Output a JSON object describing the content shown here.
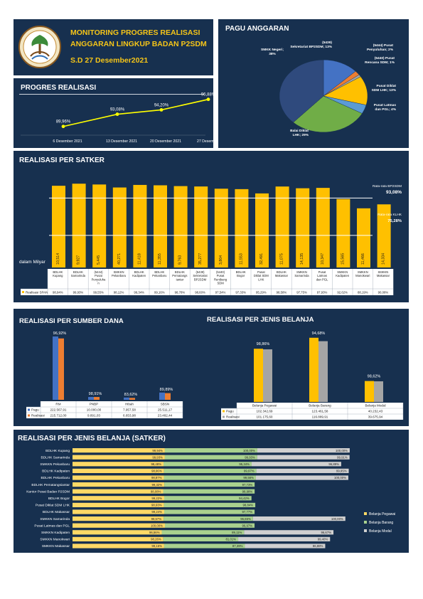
{
  "header": {
    "title_line1": "MONITORING PROGRES REALISASI",
    "title_line2": "ANGGARAN LINGKUP BADAN P2SDM",
    "date": "S.D 27 Desember2021",
    "colors": {
      "title": "#f5c518",
      "panel": "#17304f",
      "divider": "#d0d7df"
    }
  },
  "progress": {
    "title": "PROGRES REALISASI",
    "chart_data": {
      "type": "line",
      "categories": [
        "6 Desember 2021",
        "13 Desember 2021",
        "20 Desember 2021",
        "27 Desember 2021"
      ],
      "values": [
        89.96,
        93.08,
        94.2,
        96.88
      ],
      "labels": [
        "89,96%",
        "93,08%",
        "94,20%",
        "96,88%"
      ],
      "color": "#ffff00"
    }
  },
  "pagu": {
    "title": "PAGU ANGGARAN",
    "chart_data": {
      "type": "pie",
      "slices": [
        {
          "label": "(5439) Sekretariat BP2SDM",
          "value": 13,
          "text": "(5439) Sekretariat BP2SDM; 13%",
          "color": "#4472c4"
        },
        {
          "label": "(5444) Pusat Penyuluhan",
          "value": 2,
          "text": "(5444) Pusat Penyuluhan; 2%",
          "color": "#ed7d31"
        },
        {
          "label": "(5440) Pusat Rencana SDM",
          "value": 1,
          "text": "(5440) Pusat Rencana SDM; 1%",
          "color": "#a5a5a5"
        },
        {
          "label": "Pusat Diklat SDM LHK",
          "value": 13,
          "text": "Pusat Diklat SDM LHK; 13%",
          "color": "#ffc000"
        },
        {
          "label": "Pusat Latmas dan PGL",
          "value": 4,
          "text": "Pusat Latmas dan PGL; 4%",
          "color": "#5b9bd5"
        },
        {
          "label": "Balai Diklat LHK",
          "value": 29,
          "text": "Balai Diklat LHK; 29%",
          "color": "#70ad47"
        },
        {
          "label": "SMKK Negeri",
          "value": 38,
          "text": "SMKK Negeri; 38%",
          "color": "#2f4a7d"
        }
      ]
    }
  },
  "satker": {
    "title": "REALISASI PER SATKER",
    "unit_label": "dalam Milyar",
    "avg1_label": "Rata-rata BP2SDM",
    "avg1_value": "93,08%",
    "avg2_label": "Rata-rata KLHK",
    "avg2_value": "75,28%",
    "legend_label": "Realisasi SPAN",
    "chart_data": {
      "type": "bar",
      "categories": [
        "BDLHK Kupang",
        "BDLHK Samarinda",
        "(5444) Pusat Penyuluhan",
        "SMKKN Pekanbaru",
        "BDLHK Kadipaten",
        "BDLHK Pekanbaru",
        "BDLHK Pematangsiantar",
        "(5439) Sekretariat BP2SDM",
        "(5440) Pusat Rencana SDM",
        "BDLHK Bogor",
        "Pusat Diklat SDM LHK",
        "BDLHK Makassar",
        "SMKKN Samarinda",
        "Pusat Latmas dan PGL",
        "SMKKN Kadipaten",
        "SMKKN Manokwari",
        "SMKKN Makassar"
      ],
      "category_labels": [
        [
          "BDLHK",
          "Kupang"
        ],
        [
          "BDLHK",
          "Samarinda"
        ],
        [
          "(5444)",
          "Pusat",
          "Penyuluha",
          "n"
        ],
        [
          "SMKKN",
          "Pekanbaru"
        ],
        [
          "BDLHK",
          "Kadipaten"
        ],
        [
          "BDLHK",
          "Pekanbaru"
        ],
        [
          "BDLHK",
          "Pematangs",
          "iantar"
        ],
        [
          "(5439)",
          "Sekretariat",
          "BP2SDM"
        ],
        [
          "(5440)",
          "Pusat",
          "Rentbang",
          "SDM"
        ],
        [
          "BDLHK",
          "Bogor"
        ],
        [
          "Pusat",
          "Diklat SDM",
          "LHK"
        ],
        [
          "BDLHK",
          "Makassar"
        ],
        [
          "SMKKN",
          "Samarinda"
        ],
        [
          "Pusat",
          "Latmas",
          "dan PGL"
        ],
        [
          "SMKKN",
          "Kadipaten"
        ],
        [
          "SMKKN",
          "Manokwari"
        ],
        [
          "SMKKN",
          "Makassar"
        ]
      ],
      "values": [
        "10,514",
        "9,927",
        "5,445",
        "40,271",
        "11,418",
        "11,355",
        "9,763",
        "35,277",
        "3,804",
        "11,553",
        "32,491",
        "11,075",
        "14,135",
        "10,347",
        "15,565",
        "11,466",
        "14,334"
      ],
      "percent": [
        98.94,
        99.93,
        99.55,
        98.12,
        99.34,
        99.16,
        98.78,
        98.6,
        97.54,
        97.33,
        95.29,
        98.58,
        97.75,
        97.93,
        92.62,
        88.19,
        90.08
      ],
      "percent_labels": [
        "98,94%",
        "99,93%",
        "99,55%",
        "98,12%",
        "99,34%",
        "99,16%",
        "98,78%",
        "98,60%",
        "97,54%",
        "97,33%",
        "95,29%",
        "98,58%",
        "97,75%",
        "97,93%",
        "92,62%",
        "88,19%",
        "90,08%"
      ],
      "ylim": [
        60,
        100
      ],
      "avg_lines": [
        93.08,
        75.28
      ],
      "color": "#ffc000"
    }
  },
  "sumber": {
    "title": "REALISASI PER SUMBER DANA",
    "chart_data": {
      "type": "bar",
      "categories": [
        "RM",
        "PNBP",
        "Hibah",
        "SBSN"
      ],
      "series": [
        {
          "name": "Pagu",
          "values": [
            222567.91,
            10000,
            7957.58,
            25511.17
          ],
          "labels": [
            "222.567,91",
            "10.000,00",
            "7.957,58",
            "25.511,17"
          ],
          "color": "#4472c4"
        },
        {
          "name": "Realisasi",
          "values": [
            215712,
            9891.03,
            6653.98,
            23482.44
          ],
          "labels": [
            "215.712,00",
            "9.891,03",
            "6.653,98",
            "23.482,44"
          ],
          "color": "#ed7d31"
        }
      ],
      "percent_labels": [
        "96,92%",
        "98,91%",
        "83,62%",
        "89,89%"
      ],
      "ylim": [
        0,
        230000
      ]
    }
  },
  "jenis": {
    "title": "REALISASI PER JENIS BELANJA",
    "chart_data": {
      "type": "bar",
      "categories": [
        "Belanja Pegawai",
        "Belanja Barang",
        "Belanja Modal"
      ],
      "series": [
        {
          "name": "Pagu",
          "values": [
            102342.69,
            123461.58,
            40232.43
          ],
          "labels": [
            "102.342,69",
            "123.461,58",
            "40.232,43"
          ],
          "color": "#ffc000"
        },
        {
          "name": "Realisasi",
          "values": [
            101175.6,
            116889.91,
            39675.94
          ],
          "labels": [
            "101.175,60",
            "116.889,91",
            "39.675,94"
          ],
          "color": "#a5a5a5"
        }
      ],
      "percent_labels": [
        "98,86%",
        "94,68%",
        "98,62%"
      ],
      "ylim": [
        0,
        130000
      ]
    }
  },
  "jenis_satker": {
    "title": "REALISASI PER JENIS BELANJA (SATKER)",
    "chart_data": {
      "type": "bar",
      "orientation": "horizontal",
      "categories": [
        "BDLHK Kupang",
        "BDLHK Samarinda",
        "SMKKN Pekanbaru",
        "BDLHK Kadipaten",
        "BDLHK Pekanbaru",
        "BDLHK Pematangsiantar",
        "Kantor Pusat Badan P2SDM",
        "BDLHK Bogor",
        "Pusat Diklat SDM LHK",
        "BDLHK Makassar",
        "SMKKN Samarinda",
        "Pusat Latmas dan PGL",
        "SMKKN Kadipaten",
        "SMKKN Manokwari",
        "SMKKN Makassar"
      ],
      "series": [
        {
          "name": "Belanja Pegawai",
          "color": "#ffd966",
          "values": [
            99.94,
            99.93,
            98.48,
            98.96,
            98.87,
            99.32,
            98.08,
            99.22,
            98.93,
            99.24,
            98.57,
            100.0,
            96.56,
            98.26,
            99.16
          ],
          "labels": [
            "99,94%",
            "99,93%",
            "98,48%",
            "98,96%",
            "98,87%",
            "99,32%",
            "98,08%",
            "99,22%",
            "98,93%",
            "99,24%",
            "98,57%",
            "100,00%",
            "96,56%",
            "98,26%",
            "99,16%"
          ]
        },
        {
          "name": "Belanja Barang",
          "color": "#a9d18e",
          "values": [
            100.0,
            99.93,
            95.34,
            99.97,
            99.56,
            97.73,
            98.98,
            94.42,
            98.84,
            97.77,
            96.65,
            96.97,
            89.11,
            81.01,
            87.39
          ],
          "labels": [
            "100,00%",
            "99,93%",
            "95,34%",
            "99,97%",
            "99,56%",
            "97,73%",
            "98,98%",
            "94,42%",
            "98,84%",
            "97,77%",
            "96,65%",
            "96,97%",
            "89,11%",
            "81,01%",
            "87,39%"
          ]
        },
        {
          "name": "Belanja Modal",
          "color": "#d0d0d0",
          "values": [
            100.0,
            99.91,
            96.89,
            99.95,
            100.0,
            null,
            null,
            null,
            null,
            null,
            100.0,
            null,
            96.67,
            99.4,
            86.88
          ],
          "labels": [
            "100,00%",
            "99,91%",
            "96,89%",
            "99,95%",
            "100,00%",
            "",
            "",
            "",
            "",
            "",
            "100,00%",
            "",
            "96,67%",
            "99,40%",
            "86,88%"
          ]
        }
      ]
    }
  }
}
